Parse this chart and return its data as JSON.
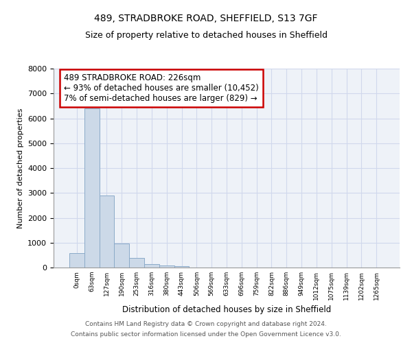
{
  "title1": "489, STRADBROKE ROAD, SHEFFIELD, S13 7GF",
  "title2": "Size of property relative to detached houses in Sheffield",
  "xlabel": "Distribution of detached houses by size in Sheffield",
  "ylabel": "Number of detached properties",
  "footer1": "Contains HM Land Registry data © Crown copyright and database right 2024.",
  "footer2": "Contains public sector information licensed under the Open Government Licence v3.0.",
  "bar_labels": [
    "0sqm",
    "63sqm",
    "127sqm",
    "190sqm",
    "253sqm",
    "316sqm",
    "380sqm",
    "443sqm",
    "506sqm",
    "569sqm",
    "633sqm",
    "696sqm",
    "759sqm",
    "822sqm",
    "886sqm",
    "949sqm",
    "1012sqm",
    "1075sqm",
    "1139sqm",
    "1202sqm",
    "1265sqm"
  ],
  "bar_values": [
    580,
    6400,
    2900,
    960,
    380,
    140,
    80,
    50,
    0,
    0,
    0,
    0,
    0,
    0,
    0,
    0,
    0,
    0,
    0,
    0,
    0
  ],
  "bar_color": "#ccd9e8",
  "bar_edge_color": "#8aaac8",
  "annotation_line0": "489 STRADBROKE ROAD: 226sqm",
  "annotation_line1": "← 93% of detached houses are smaller (10,452)",
  "annotation_line2": "7% of semi-detached houses are larger (829) →",
  "annotation_box_color": "#cc0000",
  "ylim": [
    0,
    8000
  ],
  "yticks": [
    0,
    1000,
    2000,
    3000,
    4000,
    5000,
    6000,
    7000,
    8000
  ],
  "grid_color": "#d0d8ec",
  "bg_color": "#eef2f8"
}
